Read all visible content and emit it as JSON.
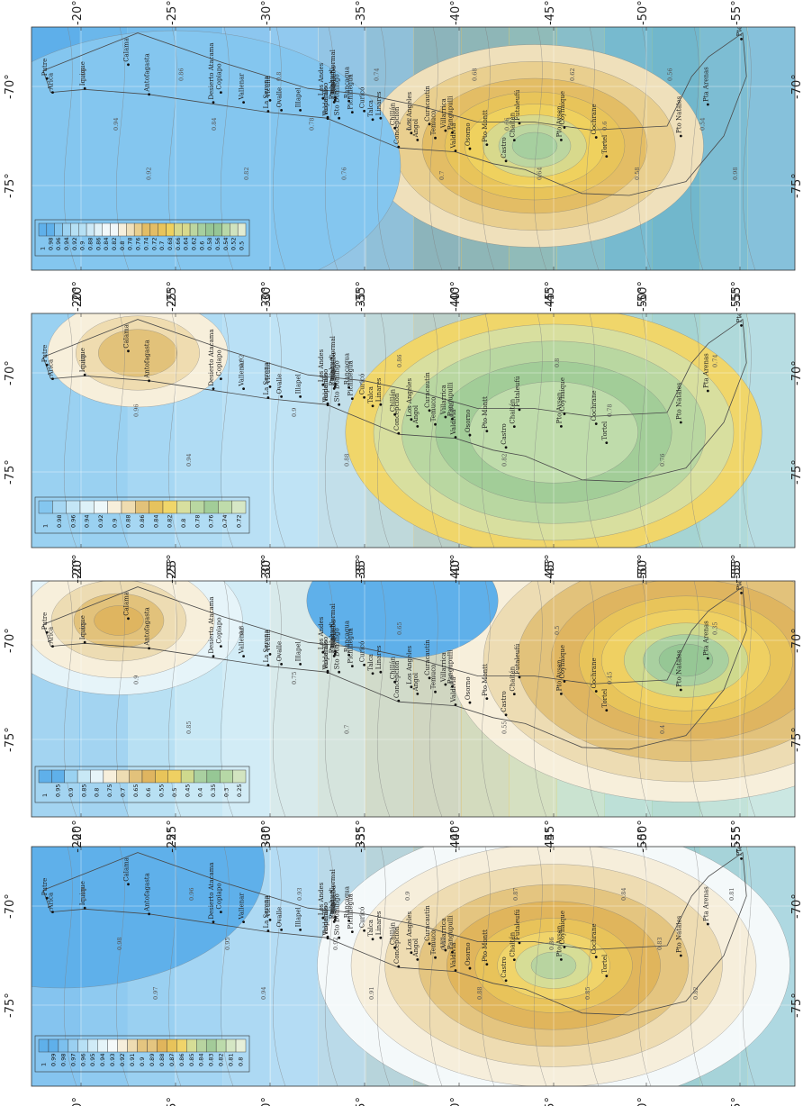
{
  "figure": {
    "panels": [
      {
        "id": "panel-1",
        "legend": [
          "1",
          "0.98",
          "0.96",
          "0.94",
          "0.92",
          "0.9",
          "0.88",
          "0.86",
          "0.84",
          "0.82",
          "0.8",
          "0.78",
          "0.76",
          "0.74",
          "0.72",
          "0.7",
          "0.68",
          "0.66",
          "0.64",
          "0.62",
          "0.6",
          "0.58",
          "0.56",
          "0.54",
          "0.52",
          "0.5"
        ],
        "colors": [
          "#5fb0ea",
          "#84c6ef",
          "#9dd3f2",
          "#b6e0f4",
          "#cde9f6",
          "#e1f2f8",
          "#f1f8fa",
          "#f6efdc",
          "#efe0bb",
          "#e9cf8f",
          "#e3bd65",
          "#e8c45a",
          "#efd15e",
          "#d8d98c",
          "#bcd6a0",
          "#a6cf9f",
          "#96c695",
          "#b8d8a8",
          "#d0e3bf",
          "#e2ecd2"
        ],
        "contour_labels": [
          "0.96",
          "0.94",
          "0.92",
          "0.86",
          "0.84",
          "0.82",
          "0.8",
          "0.78",
          "0.76",
          "0.74",
          "0.72",
          "0.7",
          "0.68",
          "0.66",
          "0.64",
          "0.62",
          "0.6",
          "0.58",
          "0.56",
          "0.54",
          "0.98"
        ]
      },
      {
        "id": "panel-2",
        "legend": [
          "1",
          "0.98",
          "0.96",
          "0.94",
          "0.92",
          "0.9",
          "0.88",
          "0.86",
          "0.84",
          "0.82",
          "0.8",
          "0.78",
          "0.76",
          "0.74",
          "0.72"
        ],
        "colors": [
          "#84c6ef",
          "#a6d7f3",
          "#c4e6f6",
          "#ddf1f8",
          "#eef8fa",
          "#f7efdb",
          "#efdcb0",
          "#e2c27a",
          "#e6c35e",
          "#f0d66a",
          "#d8df9f",
          "#b9d7a1",
          "#a2cd98",
          "#bfdcab",
          "#d6e7c5"
        ],
        "contour_labels": [
          "0.98",
          "0.96",
          "0.94",
          "0.92",
          "0.9",
          "0.88",
          "0.86",
          "0.84",
          "0.82",
          "0.8",
          "0.78",
          "0.76",
          "0.74"
        ]
      },
      {
        "id": "panel-3",
        "legend": [
          "1",
          "0.95",
          "0.9",
          "0.85",
          "0.8",
          "0.75",
          "0.7",
          "0.65",
          "0.6",
          "0.55",
          "0.5",
          "0.45",
          "0.4",
          "0.35",
          "0.3",
          "0.25"
        ],
        "colors": [
          "#5fb0ea",
          "#9ad2f1",
          "#c8e8f5",
          "#e6f4f9",
          "#f7efdb",
          "#eddcb3",
          "#e2c27b",
          "#dfb560",
          "#e8c45a",
          "#efd062",
          "#cfd98d",
          "#a9d0a0",
          "#96c795",
          "#b6d8a6",
          "#d2e4c0"
        ],
        "contour_labels": [
          "0.95",
          "0.9",
          "0.85",
          "0.8",
          "0.75",
          "0.7",
          "0.65",
          "0.6",
          "0.55",
          "0.5",
          "0.45",
          "0.4",
          "0.35"
        ]
      },
      {
        "id": "panel-4",
        "legend": [
          "1",
          "0.99",
          "0.98",
          "0.97",
          "0.96",
          "0.95",
          "0.94",
          "0.93",
          "0.92",
          "0.91",
          "0.9",
          "0.89",
          "0.88",
          "0.87",
          "0.86",
          "0.85",
          "0.84",
          "0.83",
          "0.82",
          "0.81",
          "0.8"
        ],
        "colors": [
          "#5fb0ea",
          "#7cc0ee",
          "#9ad0f1",
          "#b7e0f5",
          "#d0ebf7",
          "#e5f4f9",
          "#f4f9fa",
          "#f6eedb",
          "#eedcb2",
          "#e4c580",
          "#e0b55c",
          "#e8c35a",
          "#f0d46a",
          "#d6dd96",
          "#b8d4a0",
          "#a3cb99",
          "#bcdbab",
          "#d5e7c4",
          "#e6efd8"
        ],
        "contour_labels": [
          "0.99",
          "0.98",
          "0.97",
          "0.96",
          "0.95",
          "0.94",
          "0.93",
          "0.92",
          "0.91",
          "0.9",
          "0.89",
          "0.88",
          "0.87",
          "0.86",
          "0.85",
          "0.84",
          "0.83",
          "0.82",
          "0.81"
        ]
      }
    ],
    "lat_ticks": [
      "-20°",
      "-25°",
      "-30°",
      "-35°",
      "-40°",
      "-45°",
      "-50°",
      "-55°"
    ],
    "lon_ticks": [
      "-70°",
      "-75°"
    ],
    "cities": [
      "Arica",
      "Putre",
      "Iquique",
      "Calama",
      "Antofagasta",
      "Desierto Atacama",
      "Copiapo",
      "Vallenar",
      "La Serena",
      "Vicuña",
      "Ovalle",
      "Illapel",
      "Los Andes",
      "Tobalaba",
      "Rodelillo",
      "Quinta Normal",
      "Pudahuel",
      "Valparaiso",
      "Pichidegua",
      "Rancagua",
      "Sto Domingo",
      "Curicó",
      "Talca",
      "Linares",
      "Chillán",
      "Concepción",
      "Los Angeles",
      "Angol",
      "Curacautín",
      "Temuco",
      "Villarrica",
      "Valdivia",
      "Pangupulli",
      "Osorno",
      "Pto Montt",
      "Castro",
      "Chaitén",
      "Futaleufú",
      "Pto Aysen",
      "Coyhaique",
      "Cochrane",
      "Tortel",
      "Pto Natales",
      "Pta Arenas",
      "Pto Williams"
    ]
  }
}
